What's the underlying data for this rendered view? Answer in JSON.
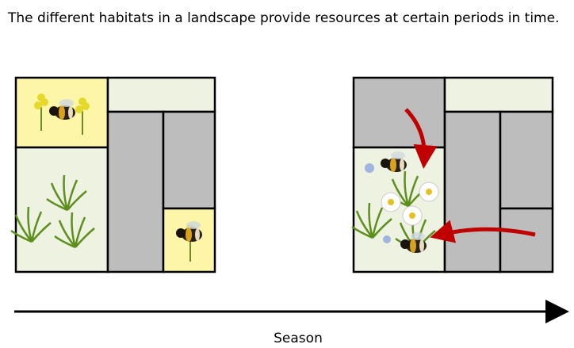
{
  "title": "The different habitats in a landscape provide resources at certain periods in time.",
  "axis_label": "Season"
}
